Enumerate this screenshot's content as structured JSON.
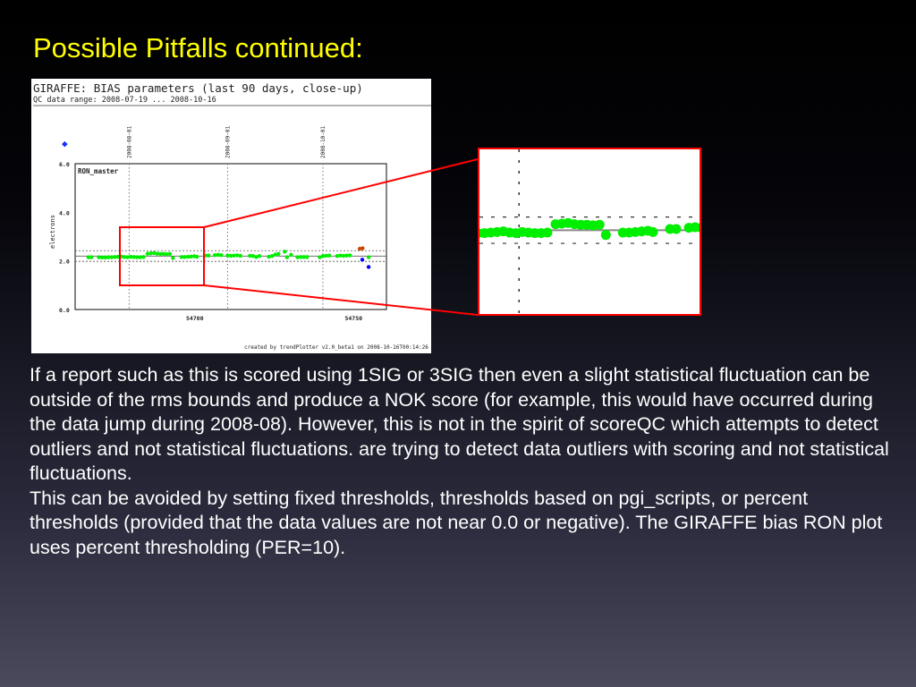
{
  "slide": {
    "title": "Possible Pitfalls continued:",
    "paragraphs": [
      "If a report such as this is scored using 1SIG or 3SIG then even a slight statistical fluctuation can be outside of the rms bounds and produce a NOK score (for example, this would have occurred during the data jump during 2008-08). However, this is not in the spirit of scoreQC which attempts to detect outliers and not statistical fluctuations. are trying to detect data outliers with scoring and not statistical fluctuations.",
      "This can be avoided by setting fixed thresholds, thresholds based on pgi_scripts, or percent thresholds (provided that the data values are not near 0.0 or negative). The GIRAFFE bias RON plot uses percent thresholding (PER=10)."
    ]
  },
  "chart_data": {
    "type": "scatter",
    "title": "GIRAFFE: BIAS parameters (last 90 days, close-up)",
    "subtitle": "QC data range: 2008-07-19 ... 2008-10-16",
    "panel_label": "RON_master",
    "ylabel": "electrons",
    "xlabel": "",
    "xlim": [
      54662,
      54760
    ],
    "ylim": [
      0,
      6
    ],
    "yticks": [
      "0.0",
      "2.0",
      "4.0",
      "6.0"
    ],
    "xticks": [
      {
        "value": 54700,
        "label": "54700"
      },
      {
        "value": 54750,
        "label": "54750"
      }
    ],
    "date_markers": [
      {
        "value": 54679,
        "label": "2008-08-01"
      },
      {
        "value": 54710,
        "label": "2008-09-01"
      },
      {
        "value": 54740,
        "label": "2008-10-01"
      }
    ],
    "reference_line": 2.2,
    "threshold_lines": [
      1.98,
      2.42
    ],
    "footer": "created by trendPlotter v2.0_beta1 on 2008-10-16T00:14:26",
    "colors": {
      "ok": "#00ee00",
      "warn": "#cc4400",
      "low": "#0000ff"
    },
    "series": [
      {
        "name": "ok",
        "points": [
          [
            54666.2,
            2.15
          ],
          [
            54667.1,
            2.15
          ],
          [
            54669.5,
            2.15
          ],
          [
            54670.5,
            2.14
          ],
          [
            54671.5,
            2.14
          ],
          [
            54672.5,
            2.15
          ],
          [
            54673.5,
            2.15
          ],
          [
            54674.5,
            2.16
          ],
          [
            54675.5,
            2.17
          ],
          [
            54676.5,
            2.18
          ],
          [
            54677.5,
            2.16
          ],
          [
            54678.5,
            2.15
          ],
          [
            54679.5,
            2.17
          ],
          [
            54680.5,
            2.16
          ],
          [
            54681.5,
            2.15
          ],
          [
            54682.5,
            2.15
          ],
          [
            54683.5,
            2.16
          ],
          [
            54684.8,
            2.3
          ],
          [
            54685.8,
            2.31
          ],
          [
            54686.8,
            2.32
          ],
          [
            54687.8,
            2.3
          ],
          [
            54688.8,
            2.29
          ],
          [
            54689.8,
            2.29
          ],
          [
            54690.8,
            2.28
          ],
          [
            54691.8,
            2.29
          ],
          [
            54692.8,
            2.12
          ],
          [
            54695.5,
            2.16
          ],
          [
            54696.5,
            2.16
          ],
          [
            54697.5,
            2.17
          ],
          [
            54698.5,
            2.18
          ],
          [
            54699.5,
            2.19
          ],
          [
            54700.3,
            2.17
          ],
          [
            54703,
            2.22
          ],
          [
            54704,
            2.22
          ],
          [
            54706,
            2.24
          ],
          [
            54707,
            2.25
          ],
          [
            54708,
            2.24
          ],
          [
            54710,
            2.22
          ],
          [
            54711,
            2.21
          ],
          [
            54712,
            2.22
          ],
          [
            54713,
            2.23
          ],
          [
            54714,
            2.21
          ],
          [
            54717,
            2.21
          ],
          [
            54718,
            2.2
          ],
          [
            54719,
            2.16
          ],
          [
            54720,
            2.2
          ],
          [
            54723,
            2.17
          ],
          [
            54724,
            2.2
          ],
          [
            54725,
            2.26
          ],
          [
            54726,
            2.29
          ],
          [
            54728,
            2.38
          ],
          [
            54728.7,
            2.15
          ],
          [
            54730,
            2.25
          ],
          [
            54732,
            2.15
          ],
          [
            54733,
            2.16
          ],
          [
            54734,
            2.16
          ],
          [
            54735,
            2.16
          ],
          [
            54739,
            2.15
          ],
          [
            54740,
            2.2
          ],
          [
            54741,
            2.21
          ],
          [
            54742,
            2.22
          ],
          [
            54744.5,
            2.2
          ],
          [
            54745.5,
            2.22
          ],
          [
            54746.5,
            2.21
          ],
          [
            54747.5,
            2.22
          ],
          [
            54748.5,
            2.23
          ],
          [
            54754.4,
            2.15
          ]
        ]
      },
      {
        "name": "warn",
        "points": [
          [
            54751.6,
            2.5
          ],
          [
            54752.5,
            2.52
          ]
        ]
      },
      {
        "name": "low",
        "points": [
          [
            54752.4,
            2.05
          ],
          [
            54754.4,
            1.75
          ]
        ]
      }
    ],
    "inset": {
      "xlim": [
        54672.7,
        54707.7
      ],
      "ylim": [
        0.8,
        3.55
      ]
    }
  }
}
